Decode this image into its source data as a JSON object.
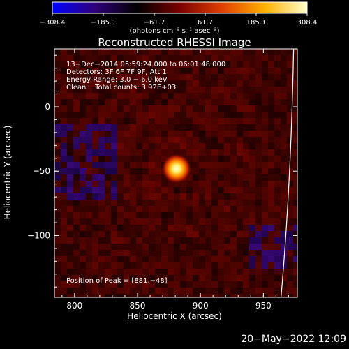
{
  "chart_data": {
    "type": "heatmap",
    "title": "Reconstructed RHESSI Image",
    "xlabel": "Heliocentric X (arcsec)",
    "ylabel": "Heliocentric Y (arcsec)",
    "xlim": [
      784,
      977
    ],
    "ylim": [
      -148,
      45
    ],
    "x_ticks": [
      800,
      850,
      900,
      950
    ],
    "y_ticks": [
      0,
      -50,
      -100
    ],
    "colorbar": {
      "unit_label": "(photons cm⁻² s⁻¹ asec⁻²)",
      "range": [
        -308.4,
        308.4
      ],
      "ticks": [
        "−308.4",
        "−185.1",
        "−61.7",
        "61.7",
        "185.1",
        "308.4"
      ],
      "colors": [
        "#0000ff",
        "#30007a",
        "#000000",
        "#7a0000",
        "#e04000",
        "#ffb000",
        "#ffffcc"
      ]
    },
    "info_lines": [
      "13−Dec−2014 05:59:24.000 to 06:01:48.000",
      "Detectors: 3F 6F 7F 9F, Att 1",
      "Energy Range: 3.0 − 6.0 keV",
      "Clean    Total counts: 3.92E+03"
    ],
    "peak": {
      "label": "Position of Peak = [881,−48]",
      "x": 881,
      "y": -48
    },
    "limb_arc": true
  },
  "footer": {
    "date": "20−May−2022 12:09"
  }
}
